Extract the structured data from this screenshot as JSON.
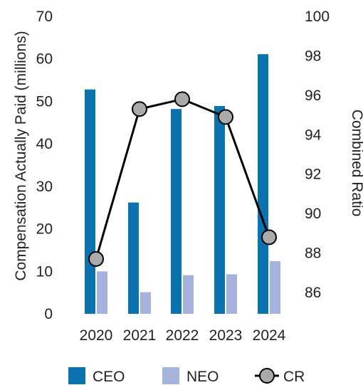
{
  "chart_data": {
    "type": "bar",
    "categories": [
      "2020",
      "2021",
      "2022",
      "2023",
      "2024"
    ],
    "series": [
      {
        "name": "CEO",
        "values": [
          52.8,
          26.2,
          48.2,
          48.9,
          61.1
        ],
        "color": "#0a72ad"
      },
      {
        "name": "NEO",
        "values": [
          10.0,
          5.1,
          9.1,
          9.3,
          12.4
        ],
        "color": "#a5b3dc"
      }
    ],
    "line_series": {
      "name": "CR",
      "values": [
        87.7,
        95.3,
        95.8,
        94.9,
        88.8
      ],
      "line_color": "#000000",
      "marker_color": "#aaaaaa"
    },
    "ylabel": "Compensation Actually Paid (millions)",
    "y2label": "Combined Ratio",
    "ylim": [
      0,
      70
    ],
    "y2lim": [
      84,
      100
    ],
    "yticks": [
      0,
      10,
      20,
      30,
      40,
      50,
      60,
      70
    ],
    "y2ticks": [
      86,
      88,
      90,
      92,
      94,
      96,
      98,
      100
    ],
    "legend_position": "bottom",
    "grid": false
  }
}
